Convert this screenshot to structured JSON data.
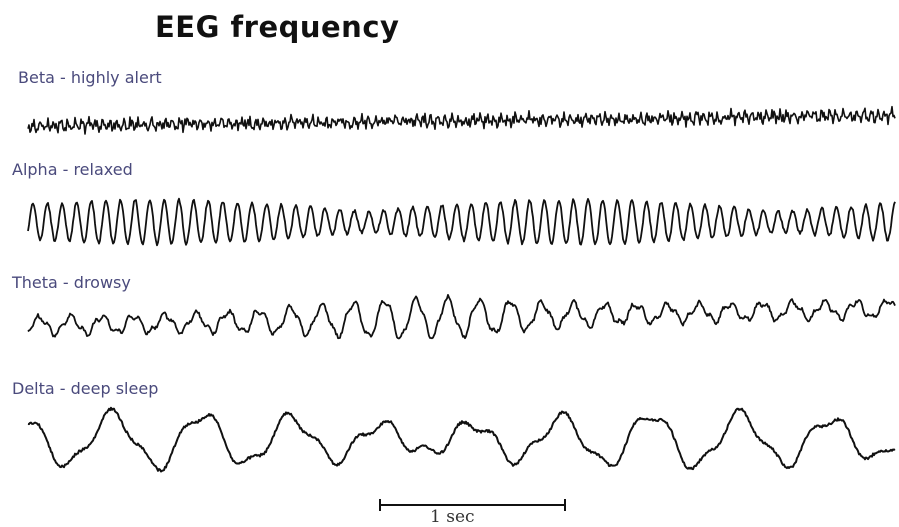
{
  "title": "EEG frequency",
  "waves": [
    {
      "id": "beta",
      "label": "Beta - highly alert"
    },
    {
      "id": "alpha",
      "label": "Alpha - relaxed"
    },
    {
      "id": "theta",
      "label": "Theta - drowsy"
    },
    {
      "id": "delta",
      "label": "Delta - deep sleep"
    }
  ],
  "scale_bar": {
    "label": "1 sec"
  },
  "colors": {
    "trace": "#111111",
    "label": "#4a4a7c",
    "title": "#111111"
  }
}
